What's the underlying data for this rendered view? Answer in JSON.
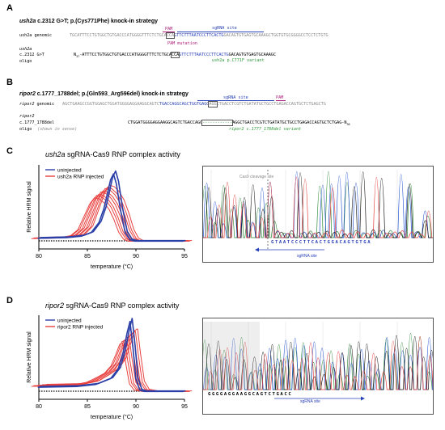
{
  "panel_a": {
    "letter": "A",
    "title_gene": "ush2a",
    "title_rest": " c.2312 G>T; p.(Cys771Phe) knock-in strategy",
    "pam_label": "PAM",
    "sgrna_label": "sgRNA site",
    "pam_mutation_label": "PAM  mutation",
    "genomic_label": "ush2a genomic",
    "genomic_pre": "TGCATTTCCTGTGGCTGTGACCCATGGGGTTTCTCTGCA",
    "genomic_pam": "CCA",
    "genomic_sgrna": "GTTCTTTAATCCCTTCACTG",
    "genomic_post": "GACAGTGTGAGTGCAAAGCTGGTGTGCGGGGCCTCCTCTGTG",
    "oligo_label1": "ush2a",
    "oligo_label2": "c.2312 G>T",
    "oligo_label3": "oligo",
    "oligo_prefix": "N",
    "oligo_prefix_sub": "37",
    "oligo_pre": "-ATTTCCTGTGGCTGTGACCCATGGGGTTTCTCTGCA",
    "oligo_pam": "CCA",
    "oligo_sgrna": "GTTCTTTAATCCCTTCACTG",
    "oligo_post": "GACAGTGTGAGTGCAAAGC",
    "variant_label": "ush2a p.C771F variant"
  },
  "panel_b": {
    "letter": "B",
    "title_gene": "ripor2",
    "title_rest": " c.1777_1788del; p.(Gln593_Arg596del) knock-in strategy",
    "sgrna_label": "sgRNA site",
    "pam_label": "PAM",
    "genomic_label_gene": "ripor2",
    "genomic_label_rest": " genomic",
    "genomic_pre": "AGCTGAAGCCGGTGGAGCTGGATGGGGAGGAAGGCAGTC",
    "genomic_sgrna": "TGACCAGGCAGCTGGTGAGG",
    "genomic_pam": "AGG",
    "genomic_post": "CTGACCTCGTCTGATATGCTGCCTGAGACCAGTGCTCTGAGCTG",
    "oligo_label1": "ripor2",
    "oligo_label2": "c.1777_1788del",
    "oligo_label3": "oligo",
    "oligo_note": "(shown in sense)",
    "oligo_pre": "CTGGATGGGGAGGAAGGCAGTCTGACCAGG",
    "oligo_gap": "------------",
    "oligo_post": "AGGCTGACCTCGTCTGATATGCTGCCTGAGACCAGTGCTCTGAG-N",
    "oligo_post_sub": "36",
    "variant_label": "ripor2 c.1777_1788del variant"
  },
  "panel_c": {
    "letter": "C",
    "chart_title_gene": "ush2a",
    "chart_title_rest": " sgRNA-Cas9 RNP complex activity",
    "chromatogram_cleavage_label": "Cas9 cleavage site",
    "chromatogram_seq": "GTAATCCCTTCACTGGACAGTGTGA",
    "chromatogram_sgrna_label": "sgRNA site"
  },
  "panel_d": {
    "letter": "D",
    "chart_title_gene": "ripor2",
    "chart_title_rest": " sgRNA-Cas9 RNP complex activity",
    "chromatogram_seq": "GGGGAGGAAGGCAGTCTGACC",
    "chromatogram_sgrna_label": "sgRNA site"
  },
  "chart_data": [
    {
      "type": "line",
      "xlabel": "temperature (°C)",
      "ylabel": "Relative HRM signal",
      "xlim": [
        80,
        95
      ],
      "x_ticks": [
        80,
        85,
        90,
        95
      ],
      "grid": false,
      "legend": "top-left",
      "series": [
        {
          "name": "uninjected",
          "color": "#2a3fa8",
          "count": 2,
          "x": [
            80,
            83,
            84.5,
            85.5,
            86.3,
            86.8,
            87.2,
            87.5,
            87.8,
            88.1,
            88.5,
            89,
            89.5,
            90,
            92,
            95
          ],
          "y": [
            0.04,
            0.05,
            0.07,
            0.12,
            0.26,
            0.45,
            0.68,
            0.86,
            0.94,
            0.8,
            0.45,
            0.12,
            0.02,
            0.0,
            0.0,
            0.0
          ]
        },
        {
          "name": "ush2a RNP injected",
          "color": "#e8413f",
          "count": 8,
          "x": [
            80,
            83,
            84,
            84.8,
            85.4,
            86,
            86.5,
            87,
            87.5,
            88,
            88.5,
            89,
            89.5,
            90,
            92,
            95
          ],
          "y": [
            0.04,
            0.05,
            0.08,
            0.18,
            0.38,
            0.58,
            0.68,
            0.66,
            0.6,
            0.5,
            0.34,
            0.14,
            0.03,
            0.0,
            0.0,
            0.0
          ]
        }
      ]
    },
    {
      "type": "line",
      "xlabel": "temperature (°C)",
      "ylabel": "Relative HRM signal",
      "xlim": [
        80,
        95
      ],
      "x_ticks": [
        80,
        85,
        90,
        95
      ],
      "grid": false,
      "legend": "top-left",
      "series": [
        {
          "name": "uninjected",
          "color": "#2a3fa8",
          "count": 2,
          "x": [
            80,
            84,
            86,
            87.5,
            88.3,
            88.8,
            89.2,
            89.5,
            89.8,
            90.1,
            90.5,
            91,
            92,
            95
          ],
          "y": [
            0.06,
            0.07,
            0.1,
            0.18,
            0.32,
            0.55,
            0.82,
            0.98,
            0.62,
            0.18,
            0.02,
            0.0,
            0.0,
            0.0
          ]
        },
        {
          "name": "ripor2 RNP injected",
          "color": "#e8413f",
          "count": 8,
          "x": [
            80,
            84,
            85.5,
            86.5,
            87.5,
            88.2,
            88.7,
            89.1,
            89.4,
            89.7,
            90.1,
            90.6,
            91.5,
            95
          ],
          "y": [
            0.08,
            0.09,
            0.13,
            0.2,
            0.28,
            0.4,
            0.58,
            0.74,
            0.76,
            0.46,
            0.12,
            0.02,
            0.0,
            0.0
          ]
        }
      ]
    }
  ],
  "colors": {
    "blue": "#2a3fa8",
    "red": "#e8413f",
    "magenta": "#b0207a",
    "green": "#2f9a3a",
    "sgrna_blue": "#2a43b8"
  }
}
